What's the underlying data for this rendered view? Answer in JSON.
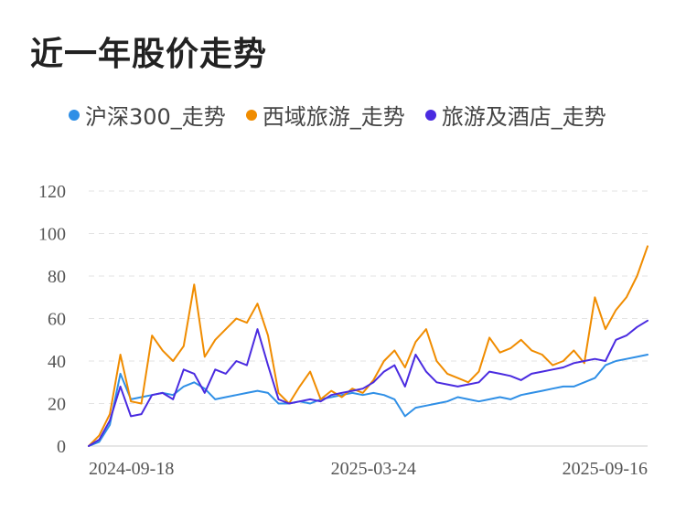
{
  "title": "近一年股价走势",
  "colors": {
    "hs300": "#2f8fe6",
    "xiyu": "#f08c00",
    "hotel": "#4a2be0",
    "grid": "#e3e3e3",
    "axis": "#cccccc"
  },
  "chart_data": {
    "type": "line",
    "title": "近一年股价走势",
    "xlabel": "",
    "ylabel": "",
    "ylim": [
      0,
      120
    ],
    "yticks": [
      "0",
      "20",
      "40",
      "60",
      "80",
      "100",
      "120"
    ],
    "xticks": [
      "2024-09-18",
      "2025-03-24",
      "2025-09-16"
    ],
    "grid": true,
    "legend_position": "top",
    "n_points": 54,
    "series": [
      {
        "name": "沪深300_走势",
        "color": "#2f8fe6",
        "values": [
          0,
          2,
          10,
          34,
          22,
          23,
          24,
          25,
          24,
          28,
          30,
          27,
          22,
          23,
          24,
          25,
          26,
          25,
          20,
          20,
          21,
          20,
          22,
          23,
          24,
          25,
          24,
          25,
          24,
          22,
          14,
          18,
          19,
          20,
          21,
          23,
          22,
          21,
          22,
          23,
          22,
          24,
          25,
          26,
          27,
          28,
          28,
          30,
          32,
          38,
          40,
          41,
          42,
          43
        ]
      },
      {
        "name": "西域旅游_走势",
        "color": "#f08c00",
        "values": [
          0,
          5,
          15,
          43,
          21,
          20,
          52,
          45,
          40,
          47,
          76,
          42,
          50,
          55,
          60,
          58,
          67,
          52,
          25,
          20,
          28,
          35,
          22,
          26,
          23,
          27,
          25,
          31,
          40,
          45,
          37,
          49,
          55,
          40,
          34,
          32,
          30,
          35,
          51,
          44,
          46,
          50,
          45,
          43,
          38,
          40,
          45,
          39,
          70,
          55,
          64,
          70,
          80,
          94
        ]
      },
      {
        "name": "旅游及酒店_走势",
        "color": "#4a2be0",
        "values": [
          0,
          3,
          12,
          28,
          14,
          15,
          24,
          25,
          22,
          36,
          34,
          25,
          36,
          34,
          40,
          38,
          55,
          38,
          22,
          20,
          21,
          22,
          21,
          24,
          25,
          26,
          27,
          30,
          35,
          38,
          28,
          43,
          35,
          30,
          29,
          28,
          29,
          30,
          35,
          34,
          33,
          31,
          34,
          35,
          36,
          37,
          39,
          40,
          41,
          40,
          50,
          52,
          56,
          59
        ]
      }
    ]
  }
}
